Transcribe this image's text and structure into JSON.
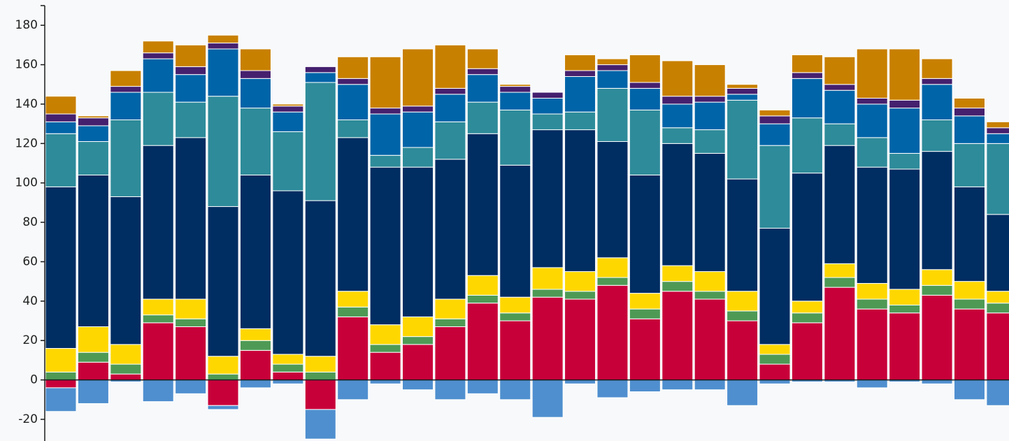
{
  "chart_data": {
    "type": "stacked_bar",
    "categories": [
      null,
      null,
      null,
      null,
      null,
      null,
      null,
      null,
      null,
      null,
      null,
      null,
      null,
      null,
      null,
      null,
      null,
      null,
      null,
      null,
      null,
      null,
      null,
      null,
      null,
      null,
      null,
      null,
      null,
      null
    ],
    "ylim": [
      -31,
      190
    ],
    "yticks": [
      -20,
      0,
      20,
      40,
      60,
      80,
      100,
      120,
      140,
      160,
      180
    ],
    "series": [
      {
        "color": "#c8003a",
        "values": [
          -4,
          9,
          3,
          29,
          27,
          -13,
          15,
          4,
          -15,
          32,
          14,
          18,
          27,
          39,
          30,
          42,
          41,
          48,
          31,
          45,
          41,
          30,
          8,
          29,
          47,
          36,
          34,
          43,
          36,
          34
        ]
      },
      {
        "color": "#4e9a55",
        "values": [
          4,
          5,
          5,
          4,
          4,
          3,
          5,
          4,
          4,
          5,
          4,
          4,
          4,
          4,
          4,
          4,
          4,
          4,
          5,
          5,
          4,
          5,
          5,
          5,
          5,
          5,
          4,
          5,
          5,
          5
        ]
      },
      {
        "color": "#ffd700",
        "values": [
          12,
          13,
          10,
          8,
          10,
          9,
          6,
          5,
          8,
          8,
          10,
          10,
          10,
          10,
          8,
          11,
          10,
          10,
          8,
          8,
          10,
          10,
          5,
          6,
          7,
          8,
          8,
          8,
          9,
          6
        ]
      },
      {
        "color": "#002d62",
        "values": [
          82,
          77,
          75,
          78,
          82,
          76,
          78,
          83,
          79,
          78,
          80,
          76,
          71,
          72,
          67,
          70,
          72,
          59,
          60,
          62,
          60,
          57,
          59,
          65,
          60,
          59,
          61,
          60,
          48,
          39
        ]
      },
      {
        "color": "#2e8b9a",
        "values": [
          27,
          17,
          39,
          27,
          18,
          56,
          34,
          30,
          60,
          9,
          6,
          10,
          19,
          16,
          28,
          8,
          9,
          27,
          33,
          8,
          12,
          40,
          42,
          28,
          11,
          15,
          8,
          16,
          22,
          36
        ]
      },
      {
        "color": "#0064a8",
        "values": [
          6,
          8,
          14,
          17,
          14,
          24,
          15,
          10,
          5,
          18,
          21,
          18,
          14,
          14,
          9,
          8,
          18,
          9,
          11,
          12,
          14,
          3,
          11,
          20,
          17,
          17,
          23,
          18,
          14,
          5
        ]
      },
      {
        "color": "#45206e",
        "values": [
          4,
          4,
          3,
          3,
          4,
          3,
          4,
          3,
          3,
          3,
          3,
          3,
          3,
          3,
          3,
          3,
          3,
          3,
          3,
          4,
          3,
          3,
          4,
          3,
          3,
          3,
          4,
          3,
          4,
          3
        ]
      },
      {
        "color": "#c88000",
        "values": [
          9,
          1,
          8,
          6,
          11,
          4,
          11,
          1,
          0,
          11,
          26,
          29,
          22,
          10,
          1,
          0,
          8,
          3,
          14,
          18,
          16,
          2,
          3,
          9,
          14,
          25,
          26,
          10,
          5,
          3
        ]
      },
      {
        "color": "#4f8fcf",
        "values": [
          -12,
          -12,
          -1,
          -11,
          -7,
          -2,
          -4,
          -2,
          -15,
          -10,
          -2,
          -5,
          -10,
          -7,
          -10,
          -19,
          -2,
          -9,
          -6,
          -5,
          -5,
          -13,
          -2,
          -1,
          -1,
          -4,
          -1,
          -2,
          -10,
          -13
        ]
      }
    ]
  }
}
